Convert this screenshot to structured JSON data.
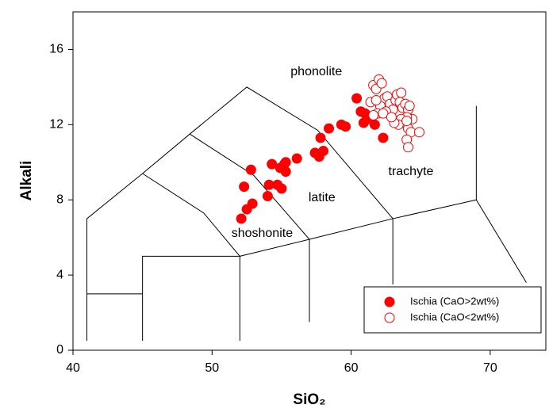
{
  "chart_data": {
    "type": "scatter",
    "x_label": "SiO₂",
    "y_label": "Alkali",
    "xlim": [
      40,
      74
    ],
    "ylim": [
      0,
      18
    ],
    "xticks": [
      40,
      50,
      60,
      70
    ],
    "yticks": [
      0,
      4,
      8,
      12,
      16
    ],
    "legend": "lower right",
    "field_lines": [
      [
        [
          41,
          0.5
        ],
        [
          41,
          7
        ],
        [
          45,
          9.4
        ],
        [
          48.4,
          11.5
        ],
        [
          52.5,
          14
        ],
        [
          57.6,
          11.7
        ],
        [
          63,
          7
        ]
      ],
      [
        [
          41,
          3
        ],
        [
          45,
          3
        ]
      ],
      [
        [
          45,
          0.5
        ],
        [
          45,
          5
        ],
        [
          52,
          5
        ],
        [
          52,
          0.5
        ]
      ],
      [
        [
          45,
          9.4
        ],
        [
          49.4,
          7.3
        ],
        [
          52,
          5
        ]
      ],
      [
        [
          48.4,
          11.5
        ],
        [
          53,
          9.3
        ],
        [
          57,
          5.9
        ]
      ],
      [
        [
          52,
          5
        ],
        [
          57,
          5.9
        ],
        [
          63,
          7
        ],
        [
          69,
          8
        ],
        [
          72.6,
          3.6
        ]
      ],
      [
        [
          57,
          5.9
        ],
        [
          57,
          1.5
        ]
      ],
      [
        [
          63,
          7
        ],
        [
          63,
          3.5
        ]
      ],
      [
        [
          69,
          8
        ],
        [
          69,
          13
        ]
      ]
    ],
    "annotations": [
      {
        "text": "phonolite",
        "x": 57.5,
        "y": 14.8
      },
      {
        "text": "latite",
        "x": 57.9,
        "y": 8.1
      },
      {
        "text": "trachyte",
        "x": 64.3,
        "y": 9.5
      },
      {
        "text": "shoshonite",
        "x": 53.6,
        "y": 6.2
      }
    ],
    "series": [
      {
        "name": "Ischia (CaO>2wt%)",
        "color": "#ff0000",
        "marker": "filled",
        "x": [
          52.1,
          52.5,
          52.9,
          52.3,
          52.8,
          54.0,
          54.1,
          54.3,
          54.7,
          55.0,
          54.9,
          55.3,
          55.3,
          55.2,
          56.1,
          57.4,
          57.7,
          57.8,
          58.0,
          58.4,
          59.3,
          59.6,
          60.4,
          60.7,
          60.9,
          61.2,
          61.7,
          62.3,
          61.0
        ],
        "values": [
          7.0,
          7.5,
          7.8,
          8.7,
          9.6,
          8.2,
          8.8,
          9.9,
          8.8,
          8.6,
          9.7,
          9.5,
          10.0,
          9.9,
          10.2,
          10.5,
          10.3,
          11.3,
          10.6,
          11.8,
          12.0,
          11.9,
          13.4,
          12.7,
          12.1,
          12.3,
          12.0,
          11.3,
          12.6
        ]
      },
      {
        "name": "Ischia (CaO<2wt%)",
        "color": "#ff0000",
        "marker": "open",
        "x": [
          61.4,
          61.6,
          61.8,
          62.0,
          62.2,
          62.4,
          62.1,
          61.9,
          62.6,
          62.8,
          63.0,
          63.2,
          63.3,
          63.5,
          63.7,
          63.9,
          64.1,
          64.2,
          64.4,
          64.0,
          63.8,
          63.6,
          63.4,
          63.1,
          64.1,
          64.3,
          64.0,
          64.1,
          64.9,
          62.5,
          62.3,
          61.8,
          62.9,
          63.6,
          64.0,
          61.6
        ],
        "values": [
          13.2,
          14.1,
          13.9,
          14.4,
          14.2,
          13.4,
          13.0,
          12.6,
          13.5,
          13.1,
          12.8,
          13.3,
          13.6,
          13.2,
          12.9,
          13.1,
          12.8,
          13.0,
          12.3,
          12.4,
          12.1,
          12.3,
          12.0,
          12.1,
          11.8,
          11.6,
          11.2,
          10.8,
          11.6,
          12.7,
          12.6,
          13.3,
          12.4,
          13.7,
          12.2,
          12.5
        ]
      }
    ]
  }
}
